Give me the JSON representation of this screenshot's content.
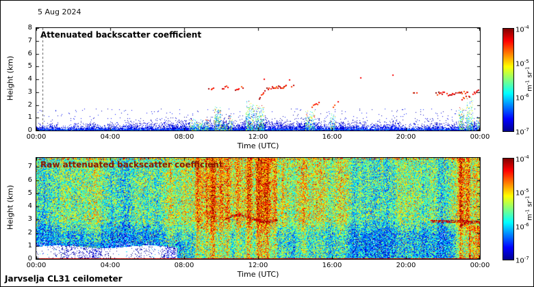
{
  "page": {
    "date_label": "5 Aug 2024",
    "footer_label": "Jarvselja CL31 ceilometer",
    "background": "#ffffff",
    "frame_color": "#000000"
  },
  "colorbar": {
    "colormap": "jet",
    "scale": "log",
    "ticks": [
      {
        "b": "10",
        "e": "-4"
      },
      {
        "b": "10",
        "e": "-5"
      },
      {
        "b": "10",
        "e": "-6"
      },
      {
        "b": "10",
        "e": "-7"
      }
    ],
    "unit_parts": [
      {
        "t": "m"
      },
      {
        "s": "-1"
      },
      {
        "t": " sr"
      },
      {
        "s": "-1"
      }
    ],
    "gradient": [
      "#00008f",
      "#0000ff",
      "#00ffff",
      "#80ff80",
      "#ffff00",
      "#ff0000",
      "#800000"
    ]
  },
  "chart_data": [
    {
      "type": "heatmap",
      "title": "Attenuated backscatter coefficient",
      "title_color": "#000000",
      "xlabel": "Time (UTC)",
      "ylabel": "Height (km)",
      "xticks": [
        "00:00",
        "04:00",
        "08:00",
        "12:00",
        "16:00",
        "20:00",
        "00:00"
      ],
      "x_hours": [
        0,
        24
      ],
      "ylim": [
        0,
        8
      ],
      "yticks": [
        "0",
        "1",
        "2",
        "3",
        "4",
        "5",
        "6",
        "7",
        "8"
      ],
      "colormap": "jet",
      "scale": "log",
      "value_range": [
        1e-07,
        0.0001
      ],
      "units": "m^-1 sr^-1",
      "grid": false,
      "features": {
        "gap_marker_hour": 0.35,
        "boundary_layer": {
          "hours": [
            0,
            24
          ],
          "top_km": [
            0.25,
            0.65
          ],
          "typical_value": 3e-07
        },
        "streaks": [
          [
            8.3,
            8.55,
            0.9
          ],
          [
            8.55,
            9.35,
            0.85
          ],
          [
            9.62,
            9.95,
            1.9
          ],
          [
            10.05,
            10.3,
            0.7
          ],
          [
            10.4,
            10.6,
            1.2
          ],
          [
            11.35,
            11.75,
            2.3
          ],
          [
            11.85,
            12.3,
            2.0
          ],
          [
            14.55,
            15.05,
            1.5
          ],
          [
            15.9,
            16.15,
            1.3
          ],
          [
            22.85,
            23.1,
            1.8
          ],
          [
            23.25,
            23.6,
            2.6
          ],
          [
            23.8,
            24,
            1.1
          ]
        ],
        "clouds": [
          [
            9.3,
            9.62,
            3.25,
            3.45
          ],
          [
            10.05,
            10.35,
            3.35,
            3.45
          ],
          [
            10.75,
            11.2,
            3.3,
            3.4
          ],
          [
            11.9,
            12.45,
            2.3,
            3.35
          ],
          [
            12.5,
            13.9,
            3.35,
            3.5
          ],
          [
            14.9,
            15.25,
            1.95,
            2.15
          ],
          [
            16.05,
            16.3,
            1.9,
            2.2
          ],
          [
            20.3,
            20.55,
            2.95,
            3.05
          ],
          [
            21.6,
            22.1,
            2.9,
            3.0
          ],
          [
            22.2,
            23.3,
            2.85,
            3.05
          ],
          [
            23.0,
            23.95,
            2.45,
            3.2
          ]
        ],
        "isolated_clouds": [
          [
            12.3,
            4.05
          ],
          [
            13.65,
            4.0
          ],
          [
            17.5,
            4.15
          ],
          [
            19.25,
            4.4
          ]
        ],
        "cloud_value": 0.0001
      }
    },
    {
      "type": "heatmap",
      "title": "Raw attenuated backscatter coefficient",
      "title_color": "#8b1a00",
      "xlabel": "Time (UTC)",
      "ylabel": "Height (km)",
      "xticks": [
        "00:00",
        "04:00",
        "08:00",
        "12:00",
        "16:00",
        "20:00",
        "00:00"
      ],
      "x_hours": [
        0,
        24
      ],
      "ylim": [
        0,
        7.7
      ],
      "yticks": [
        "0",
        "1",
        "2",
        "3",
        "4",
        "5",
        "6",
        "7"
      ],
      "colormap": "jet",
      "scale": "log",
      "value_range": [
        1e-07,
        0.0001
      ],
      "units": "m^-1 sr^-1",
      "grid": false,
      "features": {
        "background": "dense speckle noise over full field, about 1e-7 to 1e-5, blue below 2 km and green above 3 km",
        "clean_air_region": {
          "hours": [
            0,
            7.6
          ],
          "top_km": 1.0
        },
        "plumes": [
          [
            8.75,
            0.18,
            0.22
          ],
          [
            9.2,
            0.15,
            0.18
          ],
          [
            9.55,
            0.2,
            0.3
          ],
          [
            10.0,
            0.15,
            0.2
          ],
          [
            10.35,
            0.18,
            0.28
          ],
          [
            10.9,
            0.2,
            0.24
          ],
          [
            11.5,
            0.25,
            0.34
          ],
          [
            12.0,
            0.2,
            0.3
          ],
          [
            12.45,
            0.2,
            0.26
          ],
          [
            12.9,
            0.18,
            0.22
          ],
          [
            13.3,
            0.15,
            0.15
          ],
          [
            14.6,
            0.25,
            0.12
          ],
          [
            15.3,
            0.3,
            0.1
          ],
          [
            16.1,
            0.2,
            0.1
          ],
          [
            11.0,
            2.2,
            0.08
          ],
          [
            22.95,
            0.12,
            0.3
          ],
          [
            23.3,
            0.15,
            0.18
          ]
        ],
        "cloud_arcs": [
          {
            "hours": [
              10.2,
              13.0
            ],
            "km": 3.1,
            "wiggle": true
          },
          {
            "hours": [
              21.3,
              23.4
            ],
            "km": 2.9,
            "wiggle": false
          },
          {
            "hours": [
              22.9,
              24
            ],
            "km": 2.6,
            "wiggle": true
          }
        ],
        "late_low_level_plume": {
          "hours": [
            23.4,
            24
          ],
          "top_km": 2.6
        },
        "surface_return": {
          "km": 0.07,
          "value": 0.0001
        }
      }
    }
  ]
}
